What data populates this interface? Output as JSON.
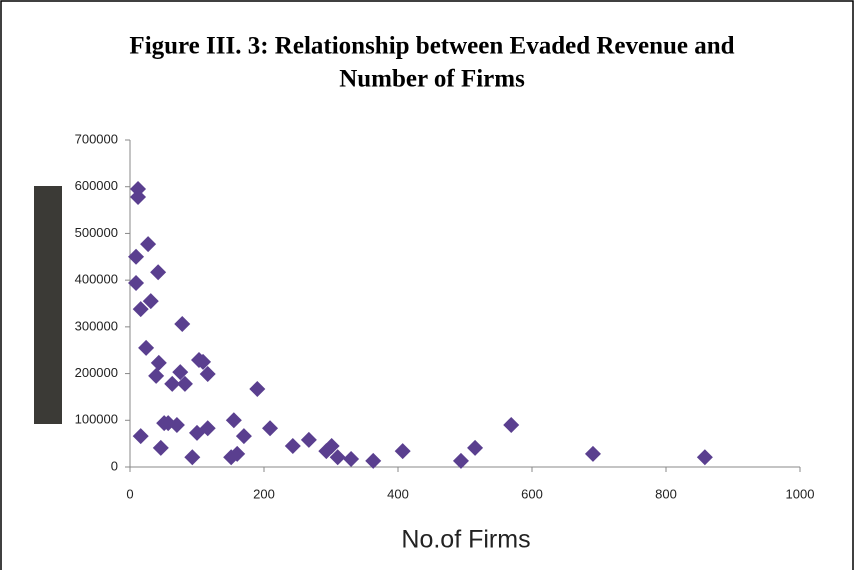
{
  "chart_data": {
    "type": "scatter",
    "title": "Figure III. 3: Relationship between Evaded Revenue and Number of Firms",
    "title_lines": [
      "Figure III. 3: Relationship between Evaded Revenue and",
      "Number of Firms"
    ],
    "x_label": "No.of Firms",
    "color": "#5a3f8f",
    "xlim": [
      0,
      1000
    ],
    "xticks": [
      0,
      200,
      400,
      600,
      800,
      1000
    ],
    "ylim": [
      0,
      700000
    ],
    "yticks": [
      0,
      100000,
      200000,
      300000,
      400000,
      500000,
      600000,
      700000
    ],
    "x": [
      12,
      12,
      27,
      9,
      42,
      9,
      31,
      16,
      78,
      24,
      43,
      103,
      109,
      75,
      116,
      39,
      63,
      82,
      190,
      155,
      51,
      57,
      70,
      116,
      209,
      569,
      100,
      16,
      170,
      267,
      243,
      301,
      515,
      46,
      293,
      407,
      160,
      691,
      151,
      93,
      310,
      330,
      858,
      363,
      494
    ],
    "values": [
      595000,
      578000,
      477000,
      450000,
      417000,
      394000,
      355000,
      338000,
      306000,
      255000,
      223000,
      229000,
      225000,
      203000,
      199000,
      195000,
      178000,
      178000,
      167000,
      100000,
      94000,
      94000,
      90000,
      83000,
      83000,
      90000,
      73000,
      66000,
      66000,
      58000,
      45000,
      45000,
      41000,
      41000,
      34000,
      34000,
      28000,
      28000,
      21000,
      21000,
      21000,
      17000,
      21000,
      13000,
      13000
    ]
  }
}
